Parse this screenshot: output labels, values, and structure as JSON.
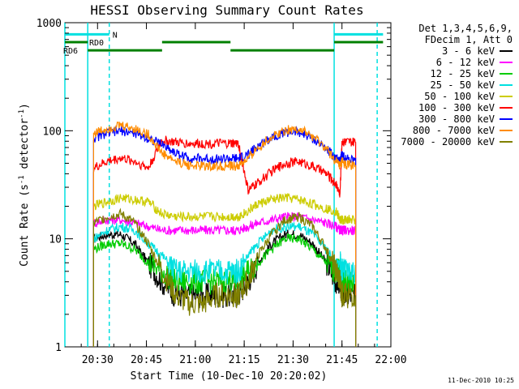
{
  "chart_data": {
    "type": "line",
    "title": "HESSI Observing Summary Count Rates",
    "xlabel": "Start Time (10-Dec-10 20:20:02)",
    "ylabel_main": "Count Rate (s",
    "ylabel_sup1": "-1",
    "ylabel_mid": " detector",
    "ylabel_sup2": "-1",
    "ylabel_end": ")",
    "y_scale": "log",
    "ylim": [
      1,
      1000
    ],
    "xlim": [
      20.333,
      22.0
    ],
    "x_ticks": [
      {
        "v": 20.5,
        "label": "20:30"
      },
      {
        "v": 20.75,
        "label": "20:45"
      },
      {
        "v": 21.0,
        "label": "21:00"
      },
      {
        "v": 21.25,
        "label": "21:15"
      },
      {
        "v": 21.5,
        "label": "21:30"
      },
      {
        "v": 21.75,
        "label": "21:45"
      },
      {
        "v": 22.0,
        "label": "22:00"
      }
    ],
    "y_ticks": [
      {
        "v": 1,
        "label": "1"
      },
      {
        "v": 10,
        "label": "10"
      },
      {
        "v": 100,
        "label": "100"
      },
      {
        "v": 1000,
        "label": "1000"
      }
    ],
    "legend_header": [
      "Det 1,3,4,5,6,9,",
      "FDecim 1, Att 0"
    ],
    "series": [
      {
        "name": "3 - 6 keV",
        "color": "#000000",
        "x": [
          20.48,
          20.55,
          20.62,
          20.69,
          20.76,
          20.83,
          20.9,
          20.97,
          21.04,
          21.11,
          21.18,
          21.22,
          21.27,
          21.32,
          21.39,
          21.46,
          21.53,
          21.6,
          21.67,
          21.72,
          21.74,
          21.75,
          21.77,
          21.82
        ],
        "y": [
          10,
          11,
          11,
          9,
          6,
          4,
          3,
          3,
          3,
          3,
          3,
          3,
          4,
          6,
          9,
          11,
          11,
          9,
          6,
          4,
          4,
          3,
          3,
          3
        ]
      },
      {
        "name": "6 - 12 keV",
        "color": "#ff00ff",
        "x": [
          20.48,
          20.55,
          20.62,
          20.69,
          20.76,
          20.83,
          20.9,
          20.97,
          21.04,
          21.11,
          21.18,
          21.22,
          21.27,
          21.32,
          21.39,
          21.46,
          21.53,
          21.6,
          21.67,
          21.72,
          21.74,
          21.75,
          21.77,
          21.82
        ],
        "y": [
          14,
          15,
          15,
          14,
          13,
          12,
          12,
          12,
          12,
          12,
          12,
          12,
          13,
          14,
          15,
          16,
          16,
          15,
          14,
          13,
          12,
          12,
          12,
          12
        ]
      },
      {
        "name": "12 - 25 keV",
        "color": "#00cc00",
        "x": [
          20.48,
          20.55,
          20.62,
          20.69,
          20.76,
          20.83,
          20.9,
          20.97,
          21.04,
          21.11,
          21.18,
          21.22,
          21.27,
          21.32,
          21.39,
          21.46,
          21.53,
          21.6,
          21.67,
          21.72,
          21.74,
          21.75,
          21.77,
          21.82
        ],
        "y": [
          8,
          9,
          9,
          8,
          6,
          5,
          4,
          4,
          4,
          4,
          4,
          4,
          5,
          6,
          8,
          10,
          10,
          8,
          6,
          5,
          5,
          4,
          4,
          4
        ]
      },
      {
        "name": "25 - 50 keV",
        "color": "#00e0e0",
        "x": [
          20.48,
          20.55,
          20.62,
          20.69,
          20.76,
          20.83,
          20.9,
          20.97,
          21.04,
          21.11,
          21.18,
          21.22,
          21.27,
          21.32,
          21.39,
          21.46,
          21.53,
          21.6,
          21.67,
          21.72,
          21.74,
          21.75,
          21.77,
          21.82
        ],
        "y": [
          10,
          12,
          13,
          12,
          9,
          7,
          5,
          5,
          5,
          5,
          5,
          5,
          7,
          9,
          12,
          13,
          13,
          11,
          8,
          6,
          6,
          5,
          5,
          5
        ]
      },
      {
        "name": "50 - 100 keV",
        "color": "#cccc00",
        "x": [
          20.48,
          20.55,
          20.62,
          20.69,
          20.76,
          20.83,
          20.9,
          20.97,
          21.04,
          21.11,
          21.18,
          21.22,
          21.27,
          21.32,
          21.39,
          21.46,
          21.53,
          21.6,
          21.67,
          21.72,
          21.74,
          21.75,
          21.77,
          21.82
        ],
        "y": [
          20,
          22,
          24,
          23,
          22,
          17,
          16,
          16,
          16,
          16,
          16,
          16,
          18,
          21,
          23,
          24,
          23,
          21,
          19,
          18,
          15,
          15,
          15,
          15
        ]
      },
      {
        "name": "100 - 300 keV",
        "color": "#ff0000",
        "x": [
          20.48,
          20.55,
          20.62,
          20.69,
          20.76,
          20.83,
          20.9,
          20.97,
          21.04,
          21.11,
          21.18,
          21.22,
          21.27,
          21.32,
          21.39,
          21.46,
          21.53,
          21.6,
          21.67,
          21.72,
          21.74,
          21.75,
          21.77,
          21.82
        ],
        "y": [
          45,
          52,
          56,
          52,
          45,
          82,
          78,
          76,
          76,
          76,
          76,
          76,
          28,
          33,
          42,
          50,
          52,
          47,
          40,
          32,
          26,
          80,
          78,
          78
        ]
      },
      {
        "name": "300 - 800 keV",
        "color": "#0000ff",
        "x": [
          20.48,
          20.55,
          20.62,
          20.69,
          20.76,
          20.83,
          20.9,
          20.97,
          21.04,
          21.11,
          21.18,
          21.22,
          21.27,
          21.32,
          21.39,
          21.46,
          21.53,
          21.6,
          21.67,
          21.72,
          21.74,
          21.75,
          21.77,
          21.82
        ],
        "y": [
          85,
          95,
          100,
          95,
          85,
          75,
          62,
          56,
          55,
          55,
          55,
          55,
          60,
          72,
          88,
          97,
          97,
          85,
          68,
          56,
          52,
          60,
          55,
          55
        ]
      },
      {
        "name": "800 - 7000 keV",
        "color": "#ff8c00",
        "x": [
          20.48,
          20.55,
          20.62,
          20.69,
          20.76,
          20.83,
          20.9,
          20.97,
          21.04,
          21.11,
          21.18,
          21.22,
          21.27,
          21.32,
          21.39,
          21.46,
          21.53,
          21.6,
          21.67,
          21.72,
          21.74,
          21.75,
          21.77,
          21.82
        ],
        "y": [
          95,
          105,
          112,
          105,
          92,
          62,
          52,
          48,
          47,
          47,
          47,
          47,
          55,
          70,
          88,
          102,
          104,
          88,
          68,
          52,
          47,
          52,
          48,
          48
        ]
      },
      {
        "name": "7000 - 20000 keV",
        "color": "#808000",
        "x": [
          20.48,
          20.55,
          20.62,
          20.69,
          20.76,
          20.83,
          20.9,
          20.97,
          21.04,
          21.11,
          21.18,
          21.22,
          21.27,
          21.32,
          21.39,
          21.46,
          21.53,
          21.6,
          21.67,
          21.72,
          21.74,
          21.75,
          21.77,
          21.82
        ],
        "y": [
          14,
          16,
          17,
          14,
          9,
          5,
          3,
          2.5,
          2.5,
          3,
          3,
          3,
          4,
          7,
          11,
          15,
          16,
          13,
          8,
          5,
          4,
          3,
          3,
          3
        ]
      }
    ],
    "event_lines": [
      {
        "x": 20.333,
        "color": "#00e0e0",
        "dashed": false
      },
      {
        "x": 20.45,
        "color": "#00e0e0",
        "dashed": false
      },
      {
        "x": 20.56,
        "color": "#00e0e0",
        "dashed": true
      },
      {
        "x": 21.71,
        "color": "#00e0e0",
        "dashed": false
      },
      {
        "x": 21.93,
        "color": "#00e0e0",
        "dashed": true
      }
    ],
    "status_bars": [
      {
        "label": "N",
        "color": "#00e0e0",
        "y_level": 780,
        "segments": [
          [
            20.333,
            20.56
          ],
          [
            21.71,
            21.96
          ]
        ]
      },
      {
        "label": "RD0",
        "color": "#008000",
        "y_level": 660,
        "segments": [
          [
            20.333,
            20.45
          ],
          [
            20.83,
            21.18
          ],
          [
            21.71,
            21.96
          ]
        ]
      },
      {
        "label": "RD6",
        "color": "#008000",
        "y_level": 555,
        "segments": [
          [
            20.45,
            20.83
          ],
          [
            21.18,
            21.71
          ]
        ]
      }
    ],
    "grid": false,
    "legend_position": "right"
  },
  "footer_timestamp": "11-Dec-2010 10:25"
}
